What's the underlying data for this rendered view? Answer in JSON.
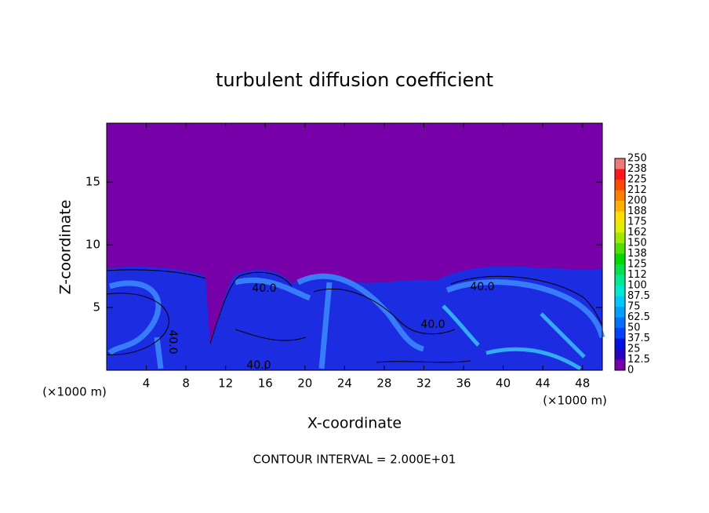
{
  "chart_data": {
    "type": "contour",
    "title": "turbulent diffusion coefficient",
    "xlabel": "X-coordinate",
    "ylabel": "Z-coordinate",
    "x_unit_labels": [
      "(×1000 m)",
      "(×1000 m)"
    ],
    "footer": "CONTOUR INTERVAL = 2.000E+01",
    "xlim": [
      0,
      50
    ],
    "ylim": [
      0,
      19.7
    ],
    "xticks": [
      4,
      8,
      12,
      16,
      20,
      24,
      28,
      32,
      36,
      40,
      44,
      48
    ],
    "yticks": [
      5,
      10,
      15
    ],
    "contour_labels": [
      "40.0",
      "40.0",
      "40.0",
      "40.0",
      "40.0"
    ],
    "colorbar": {
      "levels": [
        0,
        12.5,
        25,
        37.5,
        50,
        62.5,
        75,
        87.5,
        100,
        112,
        125,
        138,
        150,
        162,
        175,
        188,
        200,
        212,
        225,
        238,
        250
      ],
      "colors": [
        "#7800a8",
        "#2a00c0",
        "#0010e0",
        "#0040ff",
        "#0070ff",
        "#00a0ff",
        "#00c8ff",
        "#00e8d0",
        "#00e890",
        "#00e050",
        "#00d800",
        "#50e000",
        "#a0e800",
        "#e0f000",
        "#ffe000",
        "#ffb000",
        "#ff8000",
        "#ff4800",
        "#ff1818",
        "#f07878"
      ]
    }
  }
}
